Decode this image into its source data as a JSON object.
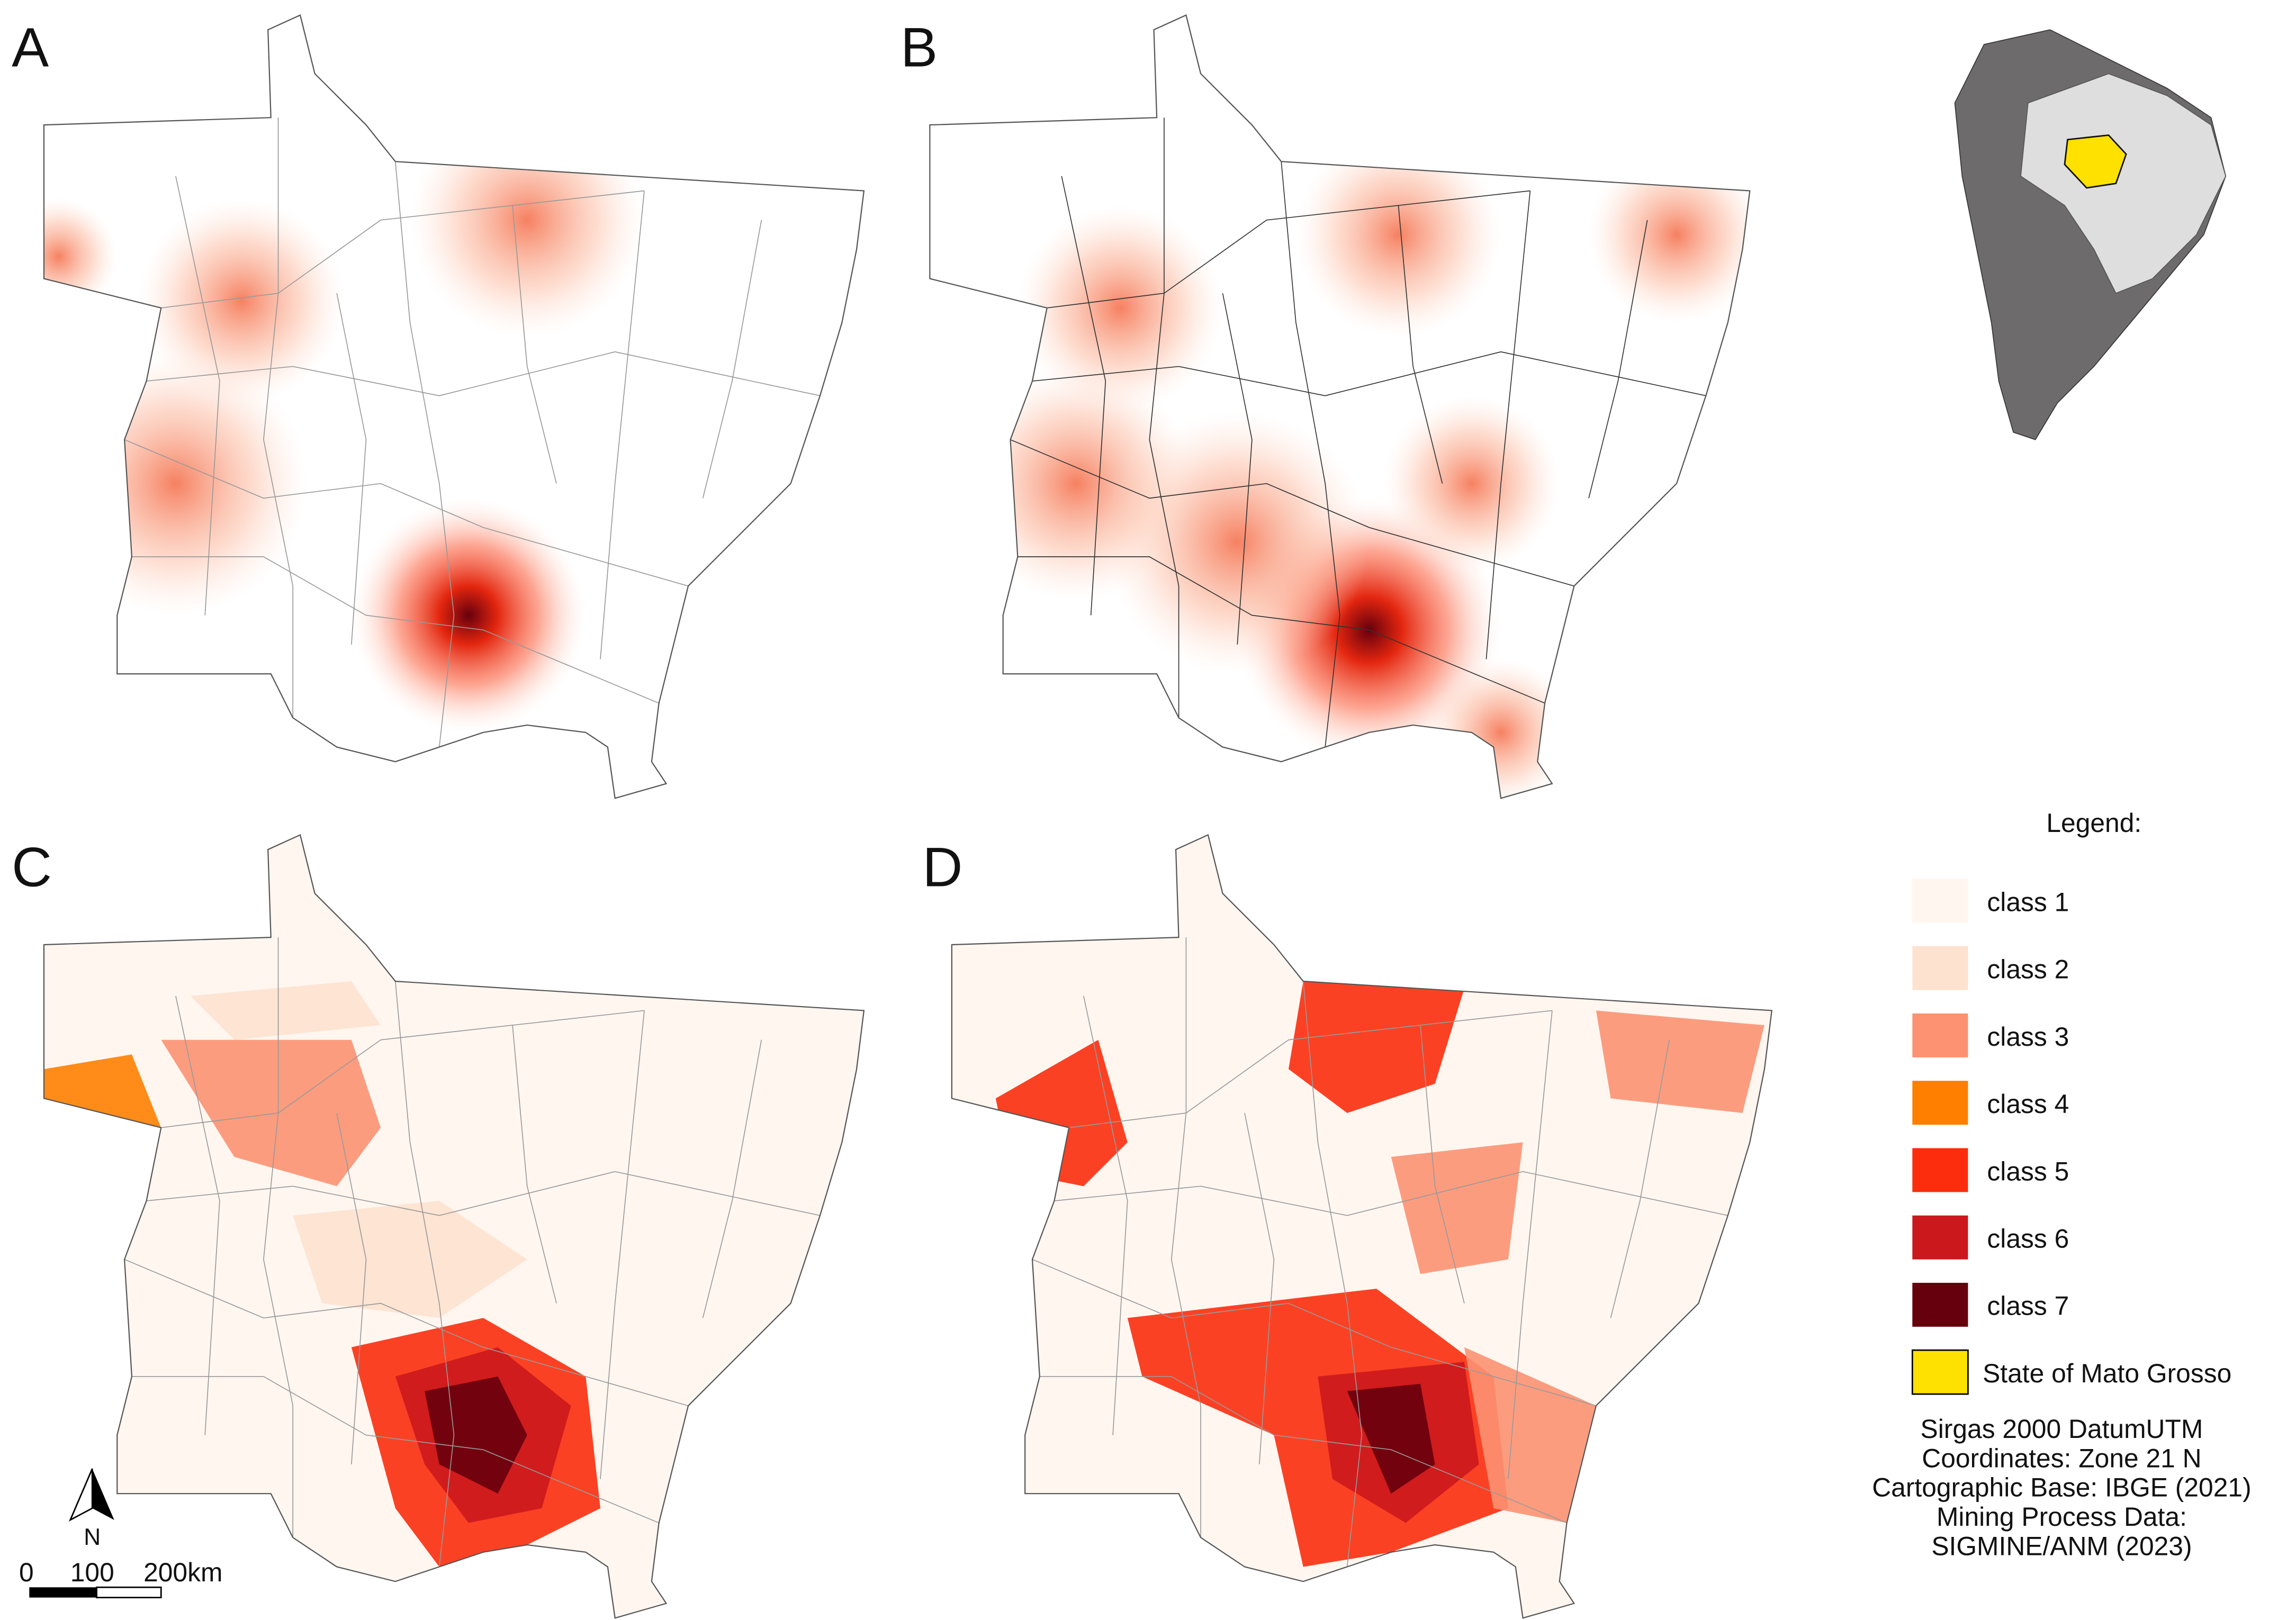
{
  "panels": [
    {
      "label": "A"
    },
    {
      "label": "B"
    },
    {
      "label": "C"
    },
    {
      "label": "D"
    }
  ],
  "legend": {
    "title": "Legend:",
    "items": [
      {
        "label": "class 1",
        "color": "#fff6f0"
      },
      {
        "label": "class 2",
        "color": "#fde2cf"
      },
      {
        "label": "class 3",
        "color": "#fc9272"
      },
      {
        "label": "class 4",
        "color": "#ff7f00"
      },
      {
        "label": "class 5",
        "color": "#fb2d0d"
      },
      {
        "label": "class 6",
        "color": "#cb181d"
      },
      {
        "label": "class 7",
        "color": "#67000d"
      },
      {
        "label": "State of Mato Grosso",
        "color": "#ffe100"
      }
    ]
  },
  "credits": [
    "Sirgas 2000 DatumUTM",
    "Coordinates: Zone 21 N",
    "Cartographic Base: IBGE (2021)",
    "Mining Process Data:",
    "SIGMINE/ANM (2023)"
  ],
  "north": "N",
  "scale_bar": [
    "0",
    "100",
    "200km"
  ]
}
